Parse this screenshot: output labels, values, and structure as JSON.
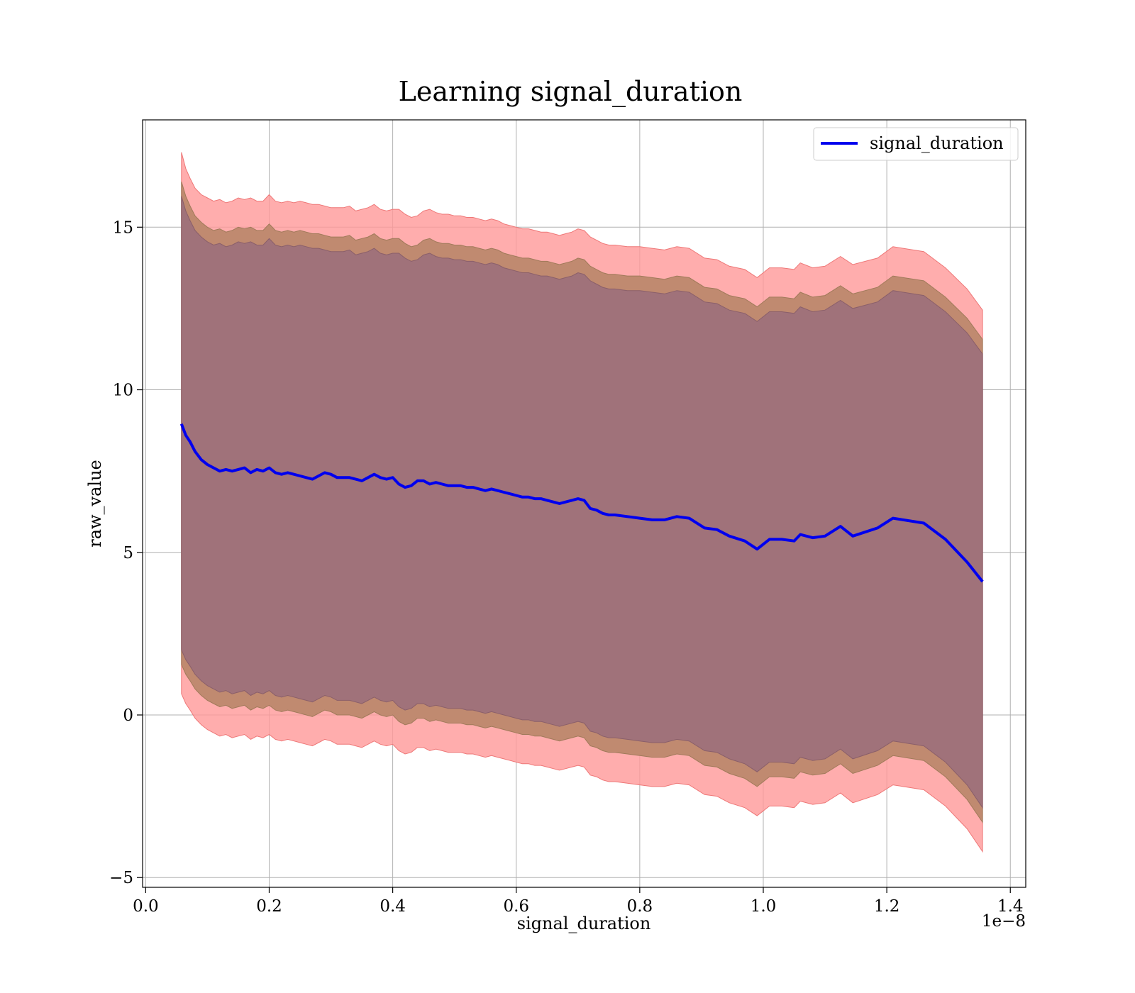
{
  "chart_data": {
    "type": "line",
    "title": "Learning signal_duration",
    "xlabel": "signal_duration",
    "ylabel": "raw_value",
    "x_offset_label": "1e−8",
    "xlim": [
      -0.005,
      1.425
    ],
    "ylim": [
      -5.3,
      18.3
    ],
    "x_ticks": [
      0.0,
      0.2,
      0.4,
      0.6,
      0.8,
      1.0,
      1.2,
      1.4
    ],
    "x_tick_labels": [
      "0.0",
      "0.2",
      "0.4",
      "0.6",
      "0.8",
      "1.0",
      "1.2",
      "1.4"
    ],
    "y_ticks": [
      -5,
      0,
      5,
      10,
      15
    ],
    "y_tick_labels": [
      "−5",
      "0",
      "5",
      "10",
      "15"
    ],
    "grid": true,
    "legend_position": "top-right",
    "colors": {
      "line": "#0000ee",
      "band_outer": "#ff9999",
      "band_middle": "#c08a70",
      "band_inner": "#a0727a",
      "grid": "#b0b0b0"
    },
    "series": [
      {
        "name": "signal_duration",
        "x": [
          0.058,
          0.065,
          0.072,
          0.08,
          0.09,
          0.1,
          0.11,
          0.12,
          0.13,
          0.14,
          0.15,
          0.16,
          0.17,
          0.18,
          0.19,
          0.2,
          0.21,
          0.22,
          0.23,
          0.24,
          0.25,
          0.26,
          0.27,
          0.28,
          0.29,
          0.3,
          0.31,
          0.32,
          0.33,
          0.34,
          0.35,
          0.36,
          0.37,
          0.38,
          0.39,
          0.4,
          0.41,
          0.42,
          0.43,
          0.44,
          0.45,
          0.46,
          0.47,
          0.48,
          0.49,
          0.5,
          0.51,
          0.52,
          0.53,
          0.54,
          0.55,
          0.56,
          0.57,
          0.58,
          0.59,
          0.6,
          0.61,
          0.62,
          0.63,
          0.64,
          0.65,
          0.66,
          0.67,
          0.68,
          0.69,
          0.7,
          0.71,
          0.72,
          0.73,
          0.74,
          0.75,
          0.76,
          0.78,
          0.8,
          0.82,
          0.84,
          0.86,
          0.88,
          0.905,
          0.925,
          0.945,
          0.97,
          0.99,
          1.01,
          1.03,
          1.05,
          1.06,
          1.08,
          1.1,
          1.125,
          1.145,
          1.185,
          1.21,
          1.26,
          1.295,
          1.33,
          1.355
        ],
        "values": [
          8.95,
          8.6,
          8.4,
          8.1,
          7.85,
          7.7,
          7.6,
          7.5,
          7.55,
          7.5,
          7.55,
          7.6,
          7.45,
          7.55,
          7.5,
          7.6,
          7.45,
          7.4,
          7.45,
          7.4,
          7.35,
          7.3,
          7.25,
          7.35,
          7.45,
          7.4,
          7.3,
          7.3,
          7.3,
          7.25,
          7.2,
          7.3,
          7.4,
          7.3,
          7.25,
          7.3,
          7.1,
          7.0,
          7.05,
          7.2,
          7.2,
          7.1,
          7.15,
          7.1,
          7.05,
          7.05,
          7.05,
          7.0,
          7.0,
          6.95,
          6.9,
          6.95,
          6.9,
          6.85,
          6.8,
          6.75,
          6.7,
          6.7,
          6.65,
          6.65,
          6.6,
          6.55,
          6.5,
          6.55,
          6.6,
          6.65,
          6.6,
          6.35,
          6.3,
          6.2,
          6.15,
          6.15,
          6.1,
          6.05,
          6.0,
          6.0,
          6.1,
          6.05,
          5.75,
          5.7,
          5.5,
          5.35,
          5.1,
          5.4,
          5.4,
          5.35,
          5.55,
          5.45,
          5.5,
          5.8,
          5.5,
          5.75,
          6.05,
          5.9,
          5.4,
          4.7,
          4.1
        ],
        "band_outer_upper": [
          17.3,
          16.8,
          16.5,
          16.2,
          16.0,
          15.9,
          15.8,
          15.85,
          15.75,
          15.8,
          15.9,
          15.85,
          15.9,
          15.8,
          15.8,
          16.0,
          15.8,
          15.75,
          15.8,
          15.75,
          15.8,
          15.75,
          15.7,
          15.7,
          15.65,
          15.6,
          15.6,
          15.6,
          15.65,
          15.5,
          15.55,
          15.6,
          15.7,
          15.55,
          15.5,
          15.55,
          15.55,
          15.4,
          15.3,
          15.35,
          15.5,
          15.55,
          15.45,
          15.4,
          15.4,
          15.35,
          15.35,
          15.3,
          15.3,
          15.25,
          15.2,
          15.25,
          15.2,
          15.1,
          15.05,
          15.0,
          14.95,
          14.95,
          14.9,
          14.85,
          14.85,
          14.8,
          14.75,
          14.8,
          14.85,
          14.95,
          14.9,
          14.7,
          14.6,
          14.5,
          14.45,
          14.45,
          14.4,
          14.4,
          14.35,
          14.3,
          14.4,
          14.35,
          14.05,
          14.0,
          13.8,
          13.7,
          13.45,
          13.75,
          13.75,
          13.7,
          13.9,
          13.75,
          13.8,
          14.1,
          13.85,
          14.05,
          14.4,
          14.25,
          13.75,
          13.1,
          12.45
        ],
        "band_outer_lower": [
          0.65,
          0.35,
          0.15,
          -0.1,
          -0.3,
          -0.45,
          -0.55,
          -0.65,
          -0.6,
          -0.7,
          -0.65,
          -0.6,
          -0.75,
          -0.65,
          -0.7,
          -0.6,
          -0.75,
          -0.8,
          -0.75,
          -0.8,
          -0.85,
          -0.9,
          -0.95,
          -0.85,
          -0.75,
          -0.8,
          -0.9,
          -0.9,
          -0.9,
          -0.95,
          -1.0,
          -0.9,
          -0.8,
          -0.9,
          -0.95,
          -0.9,
          -1.1,
          -1.2,
          -1.15,
          -1.0,
          -1.0,
          -1.1,
          -1.05,
          -1.1,
          -1.15,
          -1.15,
          -1.15,
          -1.2,
          -1.2,
          -1.25,
          -1.3,
          -1.25,
          -1.3,
          -1.35,
          -1.4,
          -1.45,
          -1.5,
          -1.5,
          -1.55,
          -1.55,
          -1.6,
          -1.65,
          -1.7,
          -1.65,
          -1.6,
          -1.55,
          -1.6,
          -1.85,
          -1.9,
          -2.0,
          -2.05,
          -2.05,
          -2.1,
          -2.15,
          -2.2,
          -2.2,
          -2.1,
          -2.15,
          -2.45,
          -2.5,
          -2.7,
          -2.85,
          -3.1,
          -2.8,
          -2.8,
          -2.85,
          -2.65,
          -2.75,
          -2.7,
          -2.4,
          -2.7,
          -2.45,
          -2.15,
          -2.3,
          -2.8,
          -3.5,
          -4.2
        ],
        "band_middle_upper": [
          16.4,
          15.95,
          15.65,
          15.35,
          15.15,
          15.0,
          14.9,
          14.95,
          14.85,
          14.9,
          15.0,
          14.95,
          15.0,
          14.9,
          14.9,
          15.1,
          14.9,
          14.85,
          14.9,
          14.85,
          14.9,
          14.85,
          14.8,
          14.8,
          14.75,
          14.7,
          14.7,
          14.7,
          14.75,
          14.6,
          14.65,
          14.7,
          14.8,
          14.65,
          14.6,
          14.65,
          14.65,
          14.5,
          14.4,
          14.45,
          14.6,
          14.65,
          14.55,
          14.5,
          14.5,
          14.45,
          14.45,
          14.4,
          14.4,
          14.35,
          14.3,
          14.35,
          14.3,
          14.2,
          14.15,
          14.1,
          14.05,
          14.05,
          14.0,
          13.95,
          13.95,
          13.9,
          13.85,
          13.9,
          13.95,
          14.05,
          14.0,
          13.8,
          13.7,
          13.6,
          13.55,
          13.55,
          13.5,
          13.5,
          13.45,
          13.4,
          13.5,
          13.45,
          13.15,
          13.1,
          12.9,
          12.8,
          12.55,
          12.85,
          12.85,
          12.8,
          13.0,
          12.85,
          12.9,
          13.2,
          12.95,
          13.15,
          13.5,
          13.35,
          12.85,
          12.2,
          11.55
        ],
        "band_middle_lower": [
          1.55,
          1.25,
          1.05,
          0.8,
          0.6,
          0.45,
          0.35,
          0.25,
          0.3,
          0.2,
          0.25,
          0.3,
          0.15,
          0.25,
          0.2,
          0.3,
          0.15,
          0.1,
          0.15,
          0.1,
          0.05,
          0.0,
          -0.05,
          0.05,
          0.15,
          0.1,
          0.0,
          0.0,
          0.0,
          -0.05,
          -0.1,
          0.0,
          0.1,
          0.0,
          -0.05,
          0.0,
          -0.2,
          -0.3,
          -0.25,
          -0.1,
          -0.1,
          -0.2,
          -0.15,
          -0.2,
          -0.25,
          -0.25,
          -0.25,
          -0.3,
          -0.3,
          -0.35,
          -0.4,
          -0.35,
          -0.4,
          -0.45,
          -0.5,
          -0.55,
          -0.6,
          -0.6,
          -0.65,
          -0.65,
          -0.7,
          -0.75,
          -0.8,
          -0.75,
          -0.7,
          -0.65,
          -0.7,
          -0.95,
          -1.0,
          -1.1,
          -1.15,
          -1.15,
          -1.2,
          -1.25,
          -1.3,
          -1.3,
          -1.2,
          -1.25,
          -1.55,
          -1.6,
          -1.8,
          -1.95,
          -2.2,
          -1.9,
          -1.9,
          -1.95,
          -1.75,
          -1.85,
          -1.8,
          -1.5,
          -1.8,
          -1.55,
          -1.25,
          -1.4,
          -1.9,
          -2.6,
          -3.3
        ],
        "band_inner_upper": [
          15.95,
          15.5,
          15.2,
          14.9,
          14.7,
          14.55,
          14.45,
          14.5,
          14.4,
          14.45,
          14.55,
          14.5,
          14.55,
          14.45,
          14.45,
          14.65,
          14.45,
          14.4,
          14.45,
          14.4,
          14.45,
          14.4,
          14.35,
          14.35,
          14.3,
          14.25,
          14.25,
          14.25,
          14.3,
          14.15,
          14.2,
          14.25,
          14.35,
          14.2,
          14.15,
          14.2,
          14.2,
          14.05,
          13.95,
          14.0,
          14.15,
          14.2,
          14.1,
          14.05,
          14.05,
          14.0,
          14.0,
          13.95,
          13.95,
          13.9,
          13.85,
          13.9,
          13.85,
          13.75,
          13.7,
          13.65,
          13.6,
          13.6,
          13.55,
          13.5,
          13.5,
          13.45,
          13.4,
          13.45,
          13.5,
          13.6,
          13.55,
          13.35,
          13.25,
          13.15,
          13.1,
          13.1,
          13.05,
          13.05,
          13.0,
          12.95,
          13.05,
          13.0,
          12.7,
          12.65,
          12.45,
          12.35,
          12.1,
          12.4,
          12.4,
          12.35,
          12.55,
          12.4,
          12.45,
          12.75,
          12.5,
          12.7,
          13.05,
          12.9,
          12.4,
          11.75,
          11.1
        ],
        "band_inner_lower": [
          2.0,
          1.7,
          1.5,
          1.25,
          1.05,
          0.9,
          0.8,
          0.7,
          0.75,
          0.65,
          0.7,
          0.75,
          0.6,
          0.7,
          0.65,
          0.75,
          0.6,
          0.55,
          0.6,
          0.55,
          0.5,
          0.45,
          0.4,
          0.5,
          0.6,
          0.55,
          0.45,
          0.45,
          0.45,
          0.4,
          0.35,
          0.45,
          0.55,
          0.45,
          0.4,
          0.45,
          0.25,
          0.15,
          0.2,
          0.35,
          0.35,
          0.25,
          0.3,
          0.25,
          0.2,
          0.2,
          0.2,
          0.15,
          0.15,
          0.1,
          0.05,
          0.1,
          0.05,
          0.0,
          -0.05,
          -0.1,
          -0.15,
          -0.15,
          -0.2,
          -0.2,
          -0.25,
          -0.3,
          -0.35,
          -0.3,
          -0.25,
          -0.2,
          -0.25,
          -0.5,
          -0.55,
          -0.65,
          -0.7,
          -0.7,
          -0.75,
          -0.8,
          -0.85,
          -0.85,
          -0.75,
          -0.8,
          -1.1,
          -1.15,
          -1.35,
          -1.5,
          -1.75,
          -1.45,
          -1.45,
          -1.5,
          -1.3,
          -1.4,
          -1.35,
          -1.05,
          -1.35,
          -1.1,
          -0.8,
          -0.95,
          -1.45,
          -2.15,
          -2.85
        ]
      }
    ]
  }
}
